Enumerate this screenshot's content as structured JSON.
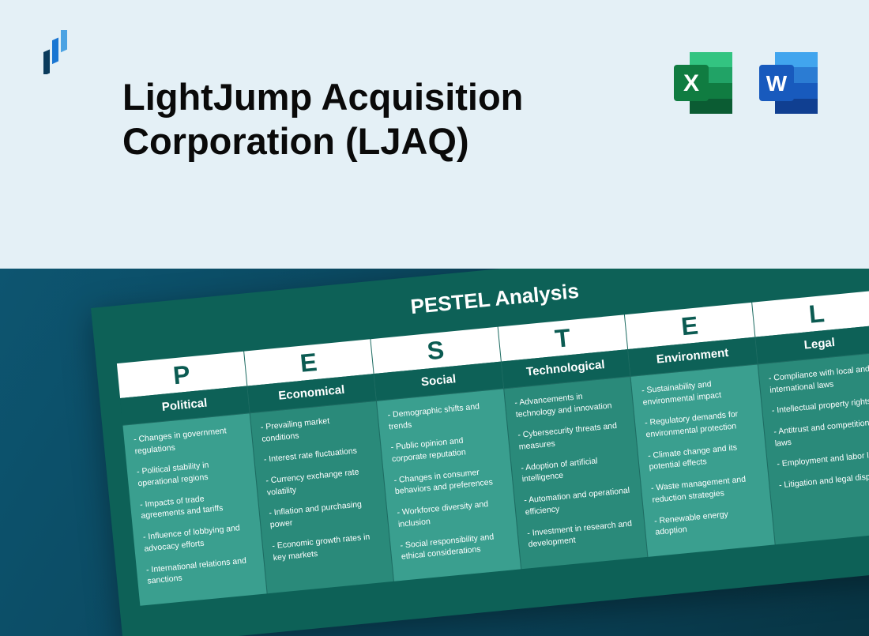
{
  "header": {
    "title": "LightJump Acquisition Corporation (LJAQ)",
    "logo_colors": {
      "dark": "#0a3b5c",
      "mid": "#1976d2",
      "light": "#4ba3e3"
    }
  },
  "software": {
    "excel": {
      "letter": "X",
      "bg_dark": "#0b5c33",
      "bg_mid": "#107c41",
      "bg_light": "#21a366",
      "bg_lighter": "#33c481",
      "label_bg": "#107c41"
    },
    "word": {
      "letter": "W",
      "bg_dark": "#103f91",
      "bg_mid": "#185abd",
      "bg_light": "#2b7cd3",
      "bg_lighter": "#41a5ee",
      "label_bg": "#185abd"
    }
  },
  "card": {
    "title": "PESTEL Analysis",
    "columns": [
      {
        "letter": "P",
        "subtitle": "Political",
        "items": [
          "Changes in government regulations",
          "Political stability in operational regions",
          "Impacts of trade agreements and tariffs",
          "Influence of lobbying and advocacy efforts",
          "International relations and sanctions"
        ]
      },
      {
        "letter": "E",
        "subtitle": "Economical",
        "items": [
          "Prevailing market conditions",
          "Interest rate fluctuations",
          "Currency exchange rate volatility",
          "Inflation and purchasing power",
          "Economic growth rates in key markets"
        ]
      },
      {
        "letter": "S",
        "subtitle": "Social",
        "items": [
          "Demographic shifts and trends",
          "Public opinion and corporate reputation",
          "Changes in consumer behaviors and preferences",
          "Workforce diversity and inclusion",
          "Social responsibility and ethical considerations"
        ]
      },
      {
        "letter": "T",
        "subtitle": "Technological",
        "items": [
          "Advancements in technology and innovation",
          "Cybersecurity threats and measures",
          "Adoption of artificial intelligence",
          "Automation and operational efficiency",
          "Investment in research and development"
        ]
      },
      {
        "letter": "E",
        "subtitle": "Environment",
        "items": [
          "Sustainability and environmental impact",
          "Regulatory demands for environmental protection",
          "Climate change and its potential effects",
          "Waste management and reduction strategies",
          "Renewable energy adoption"
        ]
      },
      {
        "letter": "L",
        "subtitle": "Legal",
        "items": [
          "Compliance with local and international laws",
          "Intellectual property rights",
          "Antitrust and competition laws",
          "Employment and labor laws",
          "Litigation and legal disputes"
        ]
      }
    ]
  },
  "styling": {
    "top_bg": "#e4f0f6",
    "bottom_bg_from": "#0d5570",
    "bottom_bg_to": "#083544",
    "card_bg": "#0d6157",
    "card_rotation_deg": -5.5,
    "col_odd_bg": "#3a9f8f",
    "col_even_bg": "#2a8a7a",
    "title_fontsize": 47,
    "card_title_fontsize": 26,
    "letter_fontsize": 32,
    "subtitle_fontsize": 15,
    "item_fontsize": 10.5
  }
}
